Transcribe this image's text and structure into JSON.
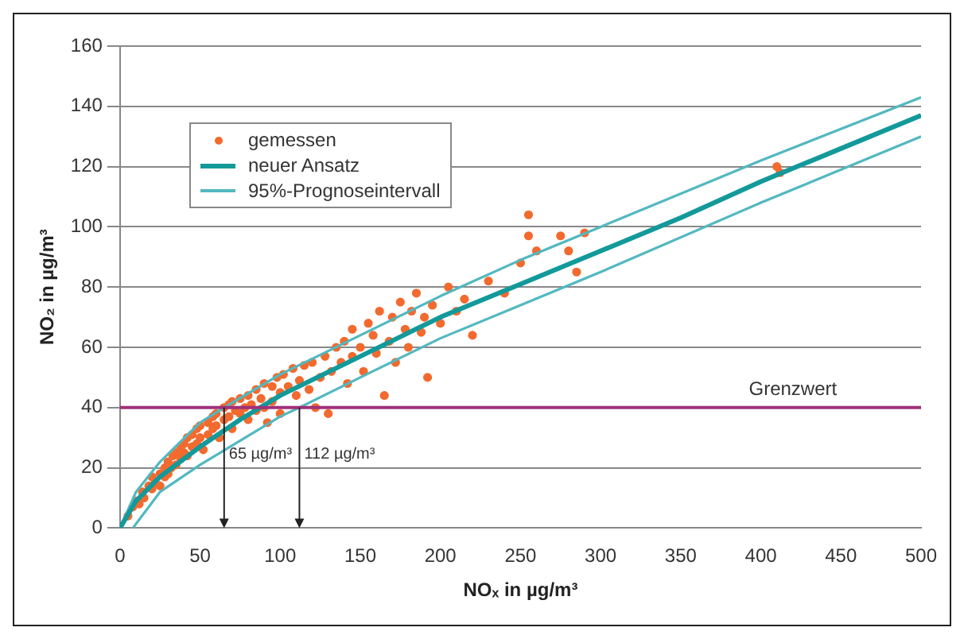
{
  "chart_data": {
    "type": "scatter",
    "xlabel": "NOₓ in µg/m³",
    "ylabel": "NO₂ in µg/m³",
    "xlim": [
      0,
      500
    ],
    "xticks": [
      0,
      50,
      100,
      150,
      200,
      250,
      300,
      350,
      400,
      450,
      500
    ],
    "ylim": [
      0,
      160
    ],
    "yticks": [
      0,
      20,
      40,
      60,
      80,
      100,
      120,
      140,
      160
    ],
    "grid": "y",
    "legend": "top left",
    "series": [
      {
        "name": "gemessen",
        "marker": "circle",
        "color": "#f26a2e",
        "x": [
          5,
          8,
          10,
          12,
          14,
          15,
          18,
          20,
          20,
          22,
          25,
          25,
          28,
          28,
          30,
          30,
          32,
          33,
          35,
          35,
          38,
          38,
          40,
          40,
          42,
          42,
          45,
          45,
          48,
          48,
          50,
          50,
          52,
          55,
          55,
          58,
          58,
          60,
          60,
          62,
          65,
          65,
          68,
          68,
          70,
          70,
          72,
          75,
          75,
          78,
          80,
          80,
          82,
          85,
          85,
          88,
          90,
          90,
          92,
          95,
          95,
          98,
          100,
          100,
          102,
          105,
          108,
          110,
          112,
          115,
          118,
          120,
          122,
          125,
          128,
          130,
          132,
          135,
          138,
          140,
          142,
          145,
          145,
          150,
          152,
          155,
          158,
          160,
          162,
          165,
          168,
          170,
          172,
          175,
          178,
          180,
          182,
          185,
          188,
          190,
          192,
          195,
          200,
          205,
          210,
          215,
          220,
          230,
          240,
          250,
          255,
          255,
          260,
          275,
          280,
          285,
          290,
          410,
          412
        ],
        "values": [
          4,
          7,
          9,
          8,
          12,
          10,
          14,
          13,
          17,
          15,
          18,
          14,
          20,
          17,
          22,
          18,
          20,
          24,
          25,
          21,
          27,
          23,
          28,
          25,
          30,
          24,
          31,
          27,
          33,
          28,
          34,
          30,
          26,
          35,
          31,
          37,
          33,
          38,
          34,
          30,
          40,
          36,
          41,
          37,
          42,
          33,
          39,
          43,
          38,
          40,
          44,
          36,
          41,
          46,
          39,
          43,
          48,
          40,
          35,
          47,
          42,
          50,
          45,
          38,
          51,
          47,
          53,
          44,
          49,
          54,
          46,
          55,
          40,
          50,
          57,
          38,
          52,
          60,
          55,
          62,
          48,
          66,
          57,
          60,
          52,
          68,
          64,
          58,
          72,
          44,
          62,
          70,
          55,
          75,
          66,
          60,
          72,
          78,
          65,
          70,
          50,
          74,
          68,
          80,
          72,
          76,
          64,
          82,
          78,
          88,
          97,
          104,
          92,
          97,
          92,
          85,
          98,
          120,
          118
        ]
      },
      {
        "name": "neuer Ansatz",
        "type": "line",
        "color": "#13999a",
        "x": [
          0,
          10,
          25,
          50,
          75,
          100,
          150,
          200,
          250,
          300,
          350,
          400,
          450,
          500
        ],
        "values": [
          0,
          9,
          17,
          27,
          36,
          44,
          57,
          70,
          81,
          92,
          103,
          115,
          126,
          137
        ]
      },
      {
        "name": "95%-Prognoseintervall",
        "type": "line",
        "color": "#52b8c0",
        "x": [
          0,
          10,
          25,
          50,
          65,
          100,
          150,
          200,
          250,
          300,
          400,
          500
        ],
        "values": [
          0,
          12,
          22,
          35,
          40,
          51,
          64,
          77,
          89,
          100,
          122,
          143
        ]
      },
      {
        "type": "line",
        "color": "#52b8c0",
        "x": [
          8,
          25,
          50,
          100,
          112,
          150,
          200,
          250,
          300,
          400,
          500
        ],
        "values": [
          0,
          12,
          21,
          37,
          40,
          50,
          63,
          74,
          85,
          108,
          130
        ]
      }
    ],
    "ref_lines": [
      {
        "axis": "y",
        "value": 40,
        "label": "Grenzwert",
        "color": "#a0307a"
      }
    ],
    "annotations": [
      {
        "text": "65 µg/m³",
        "x": 65,
        "y": 40
      },
      {
        "text": "112 µg/m³",
        "x": 112,
        "y": 40
      }
    ]
  }
}
